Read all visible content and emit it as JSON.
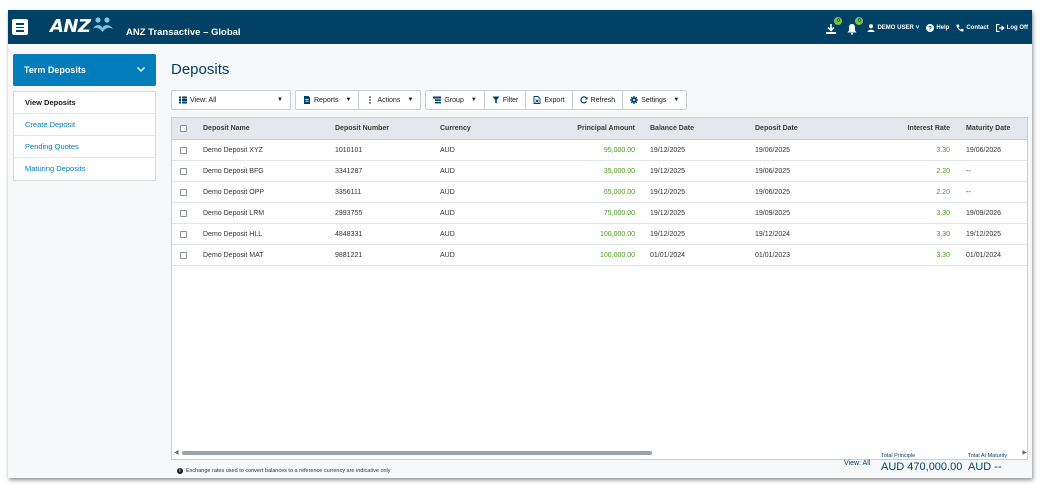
{
  "header": {
    "app_title": "ANZ Transactive – Global",
    "logo_text": "ANZ",
    "downloads_badge": "0",
    "notifications_badge": "0",
    "user_label": "DEMO USER",
    "help_label": "Help",
    "contact_label": "Contact",
    "logoff_label": "Log Off"
  },
  "sidebar": {
    "title": "Term Deposits",
    "items": [
      {
        "label": "View Deposits"
      },
      {
        "label": "Create Deposit"
      },
      {
        "label": "Pending Quotes"
      },
      {
        "label": "Maturing Deposits"
      }
    ]
  },
  "main": {
    "title": "Deposits",
    "toolbar": {
      "view_label": "View: All",
      "reports_label": "Reports",
      "actions_label": "Actions",
      "group_label": "Group",
      "filter_label": "Filter",
      "export_label": "Export",
      "refresh_label": "Refresh",
      "settings_label": "Settings"
    },
    "table": {
      "columns": [
        "Deposit Name",
        "Deposit Number",
        "Currency",
        "Principal Amount",
        "Balance Date",
        "Deposit Date",
        "Interest Rate",
        "Maturity Date"
      ],
      "rows": [
        [
          "Demo Deposit XYZ",
          "1010101",
          "AUD",
          "95,000.00",
          "19/12/2025",
          "19/06/2025",
          "3.30",
          "19/06/2026"
        ],
        [
          "Demo Deposit BFG",
          "3341287",
          "AUD",
          "35,000.00",
          "19/12/2025",
          "19/06/2025",
          "2.20",
          "--"
        ],
        [
          "Demo Deposit OPP",
          "3356111",
          "AUD",
          "65,000.00",
          "19/12/2025",
          "19/06/2025",
          "2.20",
          "--"
        ],
        [
          "Demo Deposit LRM",
          "2993755",
          "AUD",
          "75,000.00",
          "19/12/2025",
          "19/09/2025",
          "3.30",
          "19/09/2026"
        ],
        [
          "Demo Deposit HLL",
          "4848331",
          "AUD",
          "100,000.00",
          "19/12/2025",
          "19/12/2024",
          "3.30",
          "19/12/2025"
        ],
        [
          "Demo Deposit MAT",
          "9881221",
          "AUD",
          "100,000.00",
          "01/01/2024",
          "01/01/2023",
          "3.30",
          "01/01/2024"
        ]
      ]
    },
    "footer": {
      "note": "Exchange rates used to convert balances to a reference currency are indicative only",
      "view_all_label": "View: All",
      "total_principle_label": "Total Principle",
      "total_principle_value": "AUD 470,000.00",
      "total_maturity_label": "Total At Maturity",
      "total_maturity_value": "AUD --"
    }
  },
  "colors": {
    "header_bg": "#004165",
    "accent_blue": "#007dba",
    "positive_green": "#4a9a1c",
    "badge_green": "#7ac143"
  }
}
